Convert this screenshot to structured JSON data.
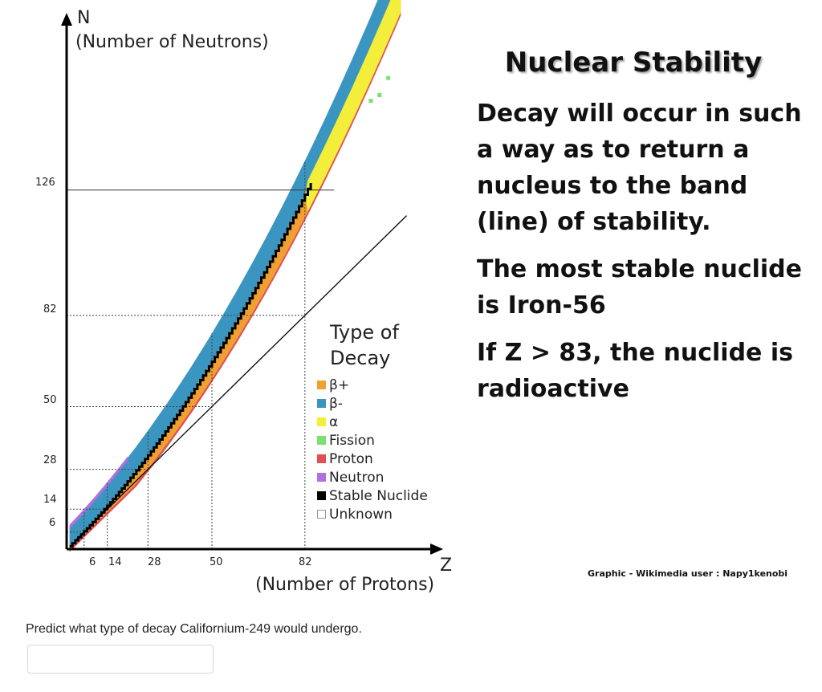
{
  "chart": {
    "y_axis_letter": "N",
    "y_axis_title": "(Number of Neutrons)",
    "x_axis_letter": "Z",
    "x_axis_title": "(Number of Protons)",
    "y_ticks": [
      "126",
      "82",
      "50",
      "28",
      "14",
      "6"
    ],
    "x_ticks": [
      "6",
      "14",
      "28",
      "50",
      "82"
    ],
    "legend_title": "Type of Decay",
    "legend": [
      {
        "label": "β+",
        "color": "#f0a030"
      },
      {
        "label": "β-",
        "color": "#3a95c0"
      },
      {
        "label": "α",
        "color": "#f2ee3a"
      },
      {
        "label": "Fission",
        "color": "#7ae070"
      },
      {
        "label": "Proton",
        "color": "#e05050"
      },
      {
        "label": "Neutron",
        "color": "#b070e0"
      },
      {
        "label": "Stable Nuclide",
        "color": "#000000"
      },
      {
        "label": "Unknown",
        "color": "#ffffff"
      }
    ]
  },
  "chart_data": {
    "type": "scatter",
    "xlabel": "(Number of Protons)",
    "ylabel": "(Number of Neutrons)",
    "x_axis_name": "Z",
    "y_axis_name": "N",
    "x_ticks": [
      6,
      14,
      28,
      50,
      82
    ],
    "y_ticks": [
      6,
      14,
      28,
      50,
      82,
      126
    ],
    "reference_line": "N = Z",
    "legend_title": "Type of Decay",
    "series": [
      {
        "name": "β+"
      },
      {
        "name": "β-"
      },
      {
        "name": "α"
      },
      {
        "name": "Fission"
      },
      {
        "name": "Proton"
      },
      {
        "name": "Neutron"
      },
      {
        "name": "Stable Nuclide"
      },
      {
        "name": "Unknown"
      }
    ]
  },
  "info": {
    "title": "Nuclear Stability",
    "paragraphs": [
      "Decay will occur in such a way as to return a nucleus to the band (line) of stability.",
      "The most stable nuclide is Iron-56",
      "If Z > 83, the nuclide is radioactive"
    ],
    "credit": "Graphic - Wikimedia user : Napy1kenobi"
  },
  "question": {
    "text": "Predict what type of decay Californium-249 would undergo.",
    "answer_value": "",
    "answer_placeholder": ""
  }
}
